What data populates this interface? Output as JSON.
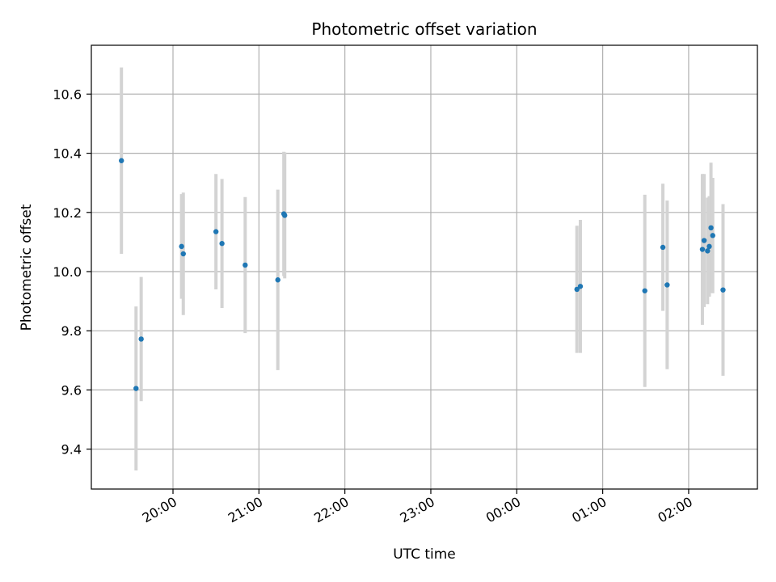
{
  "chart_data": {
    "type": "scatter",
    "title": "Photometric offset variation",
    "xlabel": "UTC time",
    "ylabel": "Photometric offset",
    "x_unit": "UTC, hours after midnight of first night",
    "xlim": [
      19.05,
      26.8
    ],
    "ylim": [
      9.265,
      10.765
    ],
    "grid": true,
    "colors": {
      "point": "#1f77b4",
      "errorbar": "#d3d3d3",
      "grid": "#b0b0b0"
    },
    "xticks": [
      {
        "value": 20,
        "label": "20:00"
      },
      {
        "value": 21,
        "label": "21:00"
      },
      {
        "value": 22,
        "label": "22:00"
      },
      {
        "value": 23,
        "label": "23:00"
      },
      {
        "value": 24,
        "label": "00:00"
      },
      {
        "value": 25,
        "label": "01:00"
      },
      {
        "value": 26,
        "label": "02:00"
      }
    ],
    "yticks": [
      {
        "value": 9.4,
        "label": "9.4"
      },
      {
        "value": 9.6,
        "label": "9.6"
      },
      {
        "value": 9.8,
        "label": "9.8"
      },
      {
        "value": 10.0,
        "label": "10.0"
      },
      {
        "value": 10.2,
        "label": "10.2"
      },
      {
        "value": 10.4,
        "label": "10.4"
      },
      {
        "value": 10.6,
        "label": "10.6"
      }
    ],
    "points": [
      {
        "x": 19.4,
        "y": 10.375,
        "err": 0.315
      },
      {
        "x": 19.57,
        "y": 9.605,
        "err": 0.277
      },
      {
        "x": 19.63,
        "y": 9.772,
        "err": 0.21
      },
      {
        "x": 20.1,
        "y": 10.085,
        "err": 0.177
      },
      {
        "x": 20.12,
        "y": 10.06,
        "err": 0.207
      },
      {
        "x": 20.5,
        "y": 10.135,
        "err": 0.195
      },
      {
        "x": 20.57,
        "y": 10.095,
        "err": 0.218
      },
      {
        "x": 20.84,
        "y": 10.022,
        "err": 0.23
      },
      {
        "x": 21.22,
        "y": 9.972,
        "err": 0.305
      },
      {
        "x": 21.29,
        "y": 10.195,
        "err": 0.21
      },
      {
        "x": 21.3,
        "y": 10.19,
        "err": 0.213
      },
      {
        "x": 24.7,
        "y": 9.94,
        "err": 0.215
      },
      {
        "x": 24.74,
        "y": 9.95,
        "err": 0.225
      },
      {
        "x": 25.49,
        "y": 9.935,
        "err": 0.325
      },
      {
        "x": 25.7,
        "y": 10.082,
        "err": 0.215
      },
      {
        "x": 25.75,
        "y": 9.955,
        "err": 0.285
      },
      {
        "x": 26.16,
        "y": 10.075,
        "err": 0.255
      },
      {
        "x": 26.18,
        "y": 10.105,
        "err": 0.225
      },
      {
        "x": 26.22,
        "y": 10.07,
        "err": 0.18
      },
      {
        "x": 26.24,
        "y": 10.085,
        "err": 0.17
      },
      {
        "x": 26.26,
        "y": 10.148,
        "err": 0.22
      },
      {
        "x": 26.28,
        "y": 10.122,
        "err": 0.195
      },
      {
        "x": 26.4,
        "y": 9.938,
        "err": 0.29
      }
    ]
  }
}
